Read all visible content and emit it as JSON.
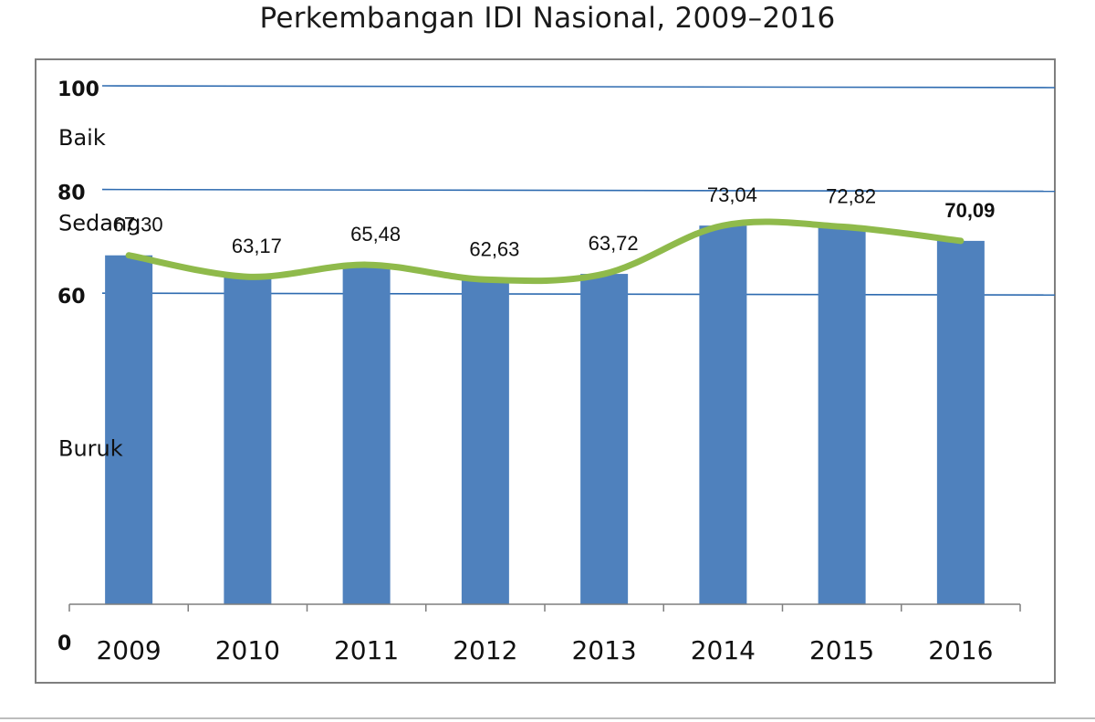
{
  "chart_data": {
    "type": "bar",
    "title": "Perkembangan IDI Nasional, 2009–2016",
    "categories": [
      "2009",
      "2010",
      "2011",
      "2012",
      "2013",
      "2014",
      "2015",
      "2016"
    ],
    "values": [
      67.3,
      63.17,
      65.48,
      62.63,
      63.72,
      73.04,
      72.82,
      70.09
    ],
    "data_labels": [
      "67,30",
      "63,17",
      "65,48",
      "62,63",
      "63,72",
      "73,04",
      "72,82",
      "70,09"
    ],
    "bold_label_index": 7,
    "overlay_line": {
      "type": "line",
      "smooth": true,
      "values": [
        67.3,
        63.17,
        65.48,
        62.63,
        63.72,
        73.04,
        72.82,
        70.09
      ]
    },
    "y_ticks": [
      "0",
      "60",
      "80",
      "100"
    ],
    "y_tick_values": [
      0,
      60,
      80,
      100
    ],
    "band_labels": [
      "Baik",
      "Sedang",
      "Buruk"
    ],
    "band_label_levels": [
      90,
      73.5,
      30
    ],
    "ylim": [
      0,
      100
    ],
    "reference_lines": [
      60,
      80,
      100
    ],
    "xlabel": "",
    "ylabel": "",
    "colors": {
      "bar": "#4f81bd",
      "line": "#8fba4b",
      "reference": "#2e6bb0",
      "axis": "#7f7f7f"
    }
  }
}
